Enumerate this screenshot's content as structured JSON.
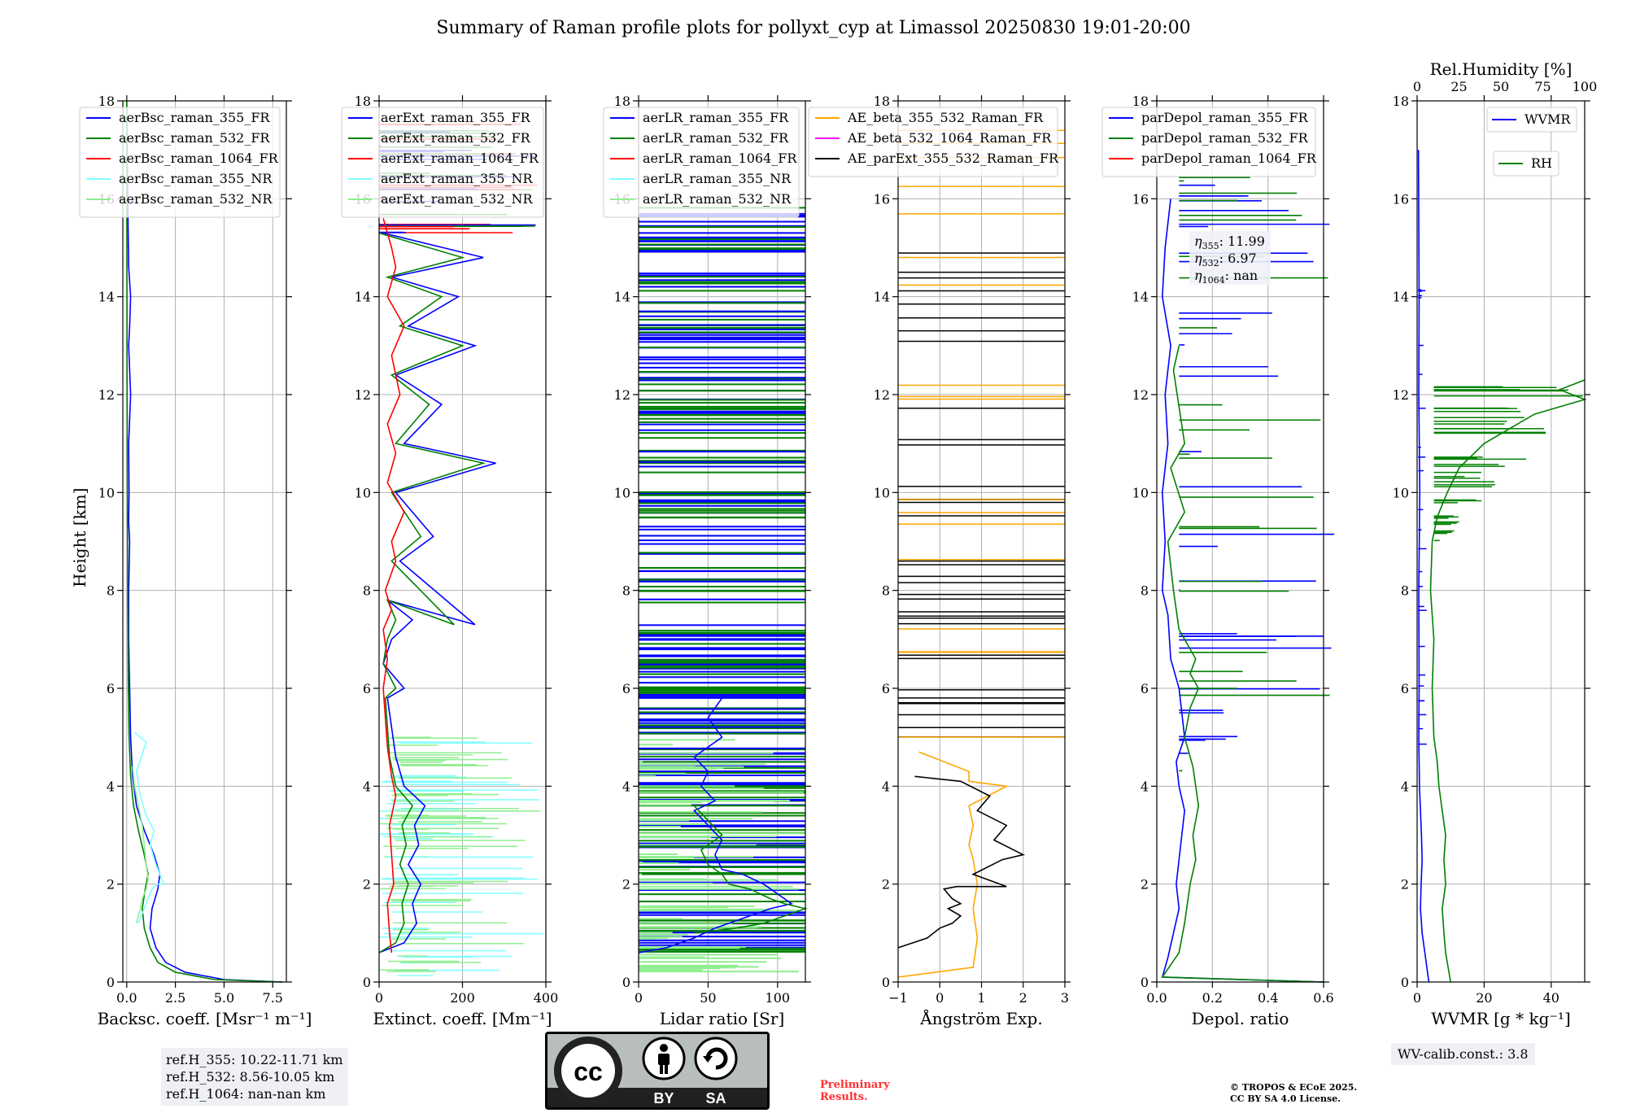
{
  "figure": {
    "title": "Summary of Raman profile plots for pollyxt_cyp at Limassol 20250830 19:01-20:00",
    "ylabel": "Height [km]",
    "ref_lines": [
      "ref.H_355: 10.22-11.71 km",
      "ref.H_532: 8.56-10.05 km",
      "ref.H_1064: nan-nan km"
    ],
    "wv_calib": "WV-calib.const.: 3.8",
    "preliminary": [
      "Preliminary",
      "Results."
    ],
    "copyright": [
      "© TROPOS & ECoE 2025.",
      "CC BY SA 4.0 License."
    ],
    "cc_badge": {
      "by": "BY",
      "sa": "SA",
      "cc": "cc"
    }
  },
  "colors": {
    "blue": "#0000ff",
    "green": "#008000",
    "red": "#ff0000",
    "cyan": "#80ffff",
    "lightgreen": "#90ee90",
    "orange": "#ffa500",
    "magenta": "#ff00ff",
    "black": "#000000"
  },
  "chart_data": [
    {
      "type": "line",
      "id": "bsc",
      "xlabel": "Backsc. coeff. [Msr⁻¹ m⁻¹]",
      "xlim": [
        -0.2,
        8.2
      ],
      "xticks": [
        0.0,
        2.5,
        5.0,
        7.5
      ],
      "xticklabels": [
        "0.0",
        "2.5",
        "5.0",
        "7.5"
      ],
      "ylim": [
        0,
        18
      ],
      "yticks": [
        0,
        2,
        4,
        6,
        8,
        10,
        12,
        14,
        16,
        18
      ],
      "legend": [
        {
          "name": "aerBsc_raman_355_FR",
          "color": "#0000ff"
        },
        {
          "name": "aerBsc_raman_532_FR",
          "color": "#008000"
        },
        {
          "name": "aerBsc_raman_1064_FR",
          "color": "#ff0000"
        },
        {
          "name": "aerBsc_raman_355_NR",
          "color": "#80ffff"
        },
        {
          "name": "aerBsc_raman_532_NR",
          "color": "#90ee90"
        }
      ],
      "series": [
        {
          "name": "aerBsc_raman_355_FR",
          "color": "#0000ff",
          "x": [
            8.0,
            5.0,
            3.0,
            2.0,
            1.5,
            1.2,
            1.3,
            1.6,
            1.7,
            1.4,
            0.9,
            0.5,
            0.3,
            0.2,
            0.15,
            0.1,
            0.1,
            0.15,
            0.1,
            0.12,
            0.1,
            0.2,
            0.1,
            0.15,
            0.2,
            0.1,
            0.05,
            0.0
          ],
          "y": [
            0.0,
            0.05,
            0.2,
            0.4,
            0.7,
            1.1,
            1.5,
            1.9,
            2.2,
            2.6,
            3.1,
            3.6,
            4.2,
            5.0,
            6.0,
            7.0,
            8.0,
            9.0,
            9.4,
            10.0,
            11.0,
            12.0,
            13.0,
            13.4,
            14.0,
            14.6,
            16.0,
            18.0
          ]
        },
        {
          "name": "aerBsc_raman_532_FR",
          "color": "#008000",
          "x": [
            8.0,
            4.5,
            2.5,
            1.6,
            1.2,
            0.9,
            0.8,
            0.95,
            1.1,
            0.9,
            0.6,
            0.35,
            0.2,
            0.12,
            0.08,
            0.05,
            0.02,
            0.0
          ],
          "y": [
            0.0,
            0.05,
            0.2,
            0.4,
            0.7,
            1.1,
            1.5,
            1.9,
            2.2,
            2.6,
            3.1,
            3.6,
            4.2,
            5.0,
            6.0,
            8.0,
            12.0,
            18.0
          ]
        },
        {
          "name": "aerBsc_raman_355_NR",
          "color": "#80ffff",
          "x": [
            0.6,
            0.9,
            1.1,
            1.3,
            1.6,
            1.9,
            1.5,
            1.2,
            1.4,
            1.0,
            0.7,
            0.5,
            1.0,
            0.4
          ],
          "y": [
            1.2,
            1.5,
            1.7,
            1.9,
            2.0,
            2.0,
            2.4,
            2.8,
            3.1,
            3.4,
            3.8,
            4.3,
            4.9,
            5.1
          ]
        },
        {
          "name": "aerBsc_raman_532_NR",
          "color": "#90ee90",
          "x": [
            0.5,
            0.7,
            0.8,
            1.0,
            1.1,
            1.0,
            0.9,
            0.8,
            0.6,
            0.4,
            0.3
          ],
          "y": [
            1.2,
            1.5,
            1.7,
            1.9,
            2.1,
            2.4,
            2.8,
            3.2,
            3.6,
            4.0,
            4.4
          ]
        }
      ]
    },
    {
      "type": "line",
      "id": "ext",
      "xlabel": "Extinct. coeff. [Mm⁻¹]",
      "xlim": [
        0,
        400
      ],
      "xticks": [
        0,
        200,
        400
      ],
      "xticklabels": [
        "0",
        "200",
        "400"
      ],
      "ylim": [
        0,
        18
      ],
      "yticks": [
        0,
        2,
        4,
        6,
        8,
        10,
        12,
        14,
        16,
        18
      ],
      "legend": [
        {
          "name": "aerExt_raman_355_FR",
          "color": "#0000ff"
        },
        {
          "name": "aerExt_raman_532_FR",
          "color": "#008000"
        },
        {
          "name": "aerExt_raman_1064_FR",
          "color": "#ff0000"
        },
        {
          "name": "aerExt_raman_355_NR",
          "color": "#80ffff"
        },
        {
          "name": "aerExt_raman_532_NR",
          "color": "#90ee90"
        }
      ],
      "series": [
        {
          "name": "aerExt_raman_355_FR",
          "color": "#0000ff",
          "x": [
            0,
            60,
            90,
            80,
            100,
            70,
            95,
            85,
            110,
            60,
            40,
            30,
            20,
            60,
            10,
            30,
            80,
            20,
            230,
            50,
            130,
            40,
            280,
            60,
            150,
            40,
            230,
            70,
            190,
            30,
            250,
            10
          ],
          "y": [
            0.6,
            0.8,
            1.2,
            1.6,
            2.0,
            2.4,
            2.8,
            3.2,
            3.6,
            4.0,
            4.6,
            5.2,
            5.8,
            6.0,
            6.5,
            7.0,
            7.4,
            7.8,
            7.3,
            8.6,
            9.1,
            10.0,
            10.6,
            11.0,
            11.8,
            12.4,
            13.0,
            13.4,
            14.0,
            14.4,
            14.8,
            15.3
          ]
        },
        {
          "name": "aerExt_raman_532_FR",
          "color": "#008000",
          "x": [
            0,
            40,
            60,
            55,
            70,
            50,
            65,
            55,
            80,
            40,
            25,
            20,
            15,
            40,
            10,
            20,
            40,
            20,
            180,
            30,
            100,
            30,
            250,
            40,
            120,
            30,
            200,
            50,
            150,
            20,
            200,
            0
          ],
          "y": [
            0.6,
            0.8,
            1.2,
            1.6,
            2.0,
            2.4,
            2.8,
            3.2,
            3.6,
            4.0,
            4.6,
            5.2,
            5.8,
            6.0,
            6.5,
            7.0,
            7.4,
            7.8,
            7.3,
            8.6,
            9.1,
            10.0,
            10.6,
            11.0,
            11.8,
            12.4,
            13.0,
            13.4,
            14.0,
            14.4,
            14.8,
            15.3
          ]
        },
        {
          "name": "aerExt_raman_1064_FR",
          "color": "#ff0000",
          "x": [
            30,
            25,
            20,
            35,
            30,
            25,
            40,
            30,
            20,
            15,
            10,
            20,
            10,
            30,
            15,
            40,
            30,
            60,
            20,
            40,
            20,
            50,
            30,
            60,
            20,
            40,
            30,
            10
          ],
          "y": [
            0.6,
            1.0,
            1.6,
            2.0,
            2.6,
            3.2,
            3.8,
            4.2,
            4.8,
            5.4,
            6.0,
            6.6,
            7.2,
            7.6,
            8.0,
            8.6,
            9.0,
            9.6,
            10.2,
            10.8,
            11.4,
            12.0,
            12.8,
            13.4,
            14.0,
            14.6,
            15.0,
            15.6
          ]
        }
      ]
    },
    {
      "type": "line",
      "id": "lr",
      "xlabel": "Lidar ratio [Sr]",
      "xlim": [
        0,
        120
      ],
      "xticks": [
        0,
        50,
        100
      ],
      "xticklabels": [
        "0",
        "50",
        "100"
      ],
      "ylim": [
        0,
        18
      ],
      "yticks": [
        0,
        2,
        4,
        6,
        8,
        10,
        12,
        14,
        16,
        18
      ],
      "legend": [
        {
          "name": "aerLR_raman_355_FR",
          "color": "#0000ff"
        },
        {
          "name": "aerLR_raman_532_FR",
          "color": "#008000"
        },
        {
          "name": "aerLR_raman_1064_FR",
          "color": "#ff0000"
        },
        {
          "name": "aerLR_raman_355_NR",
          "color": "#80ffff"
        },
        {
          "name": "aerLR_raman_532_NR",
          "color": "#90ee90"
        }
      ],
      "series": [
        {
          "name": "aerLR_raman_355_FR",
          "color": "#0000ff",
          "x": [
            0,
            20,
            40,
            55,
            65,
            75,
            85,
            95,
            110,
            100,
            90,
            75,
            60,
            55,
            60,
            50,
            40,
            55,
            45,
            50,
            40,
            60,
            50,
            60
          ],
          "y": [
            0.6,
            0.7,
            0.9,
            1.1,
            1.2,
            1.3,
            1.4,
            1.5,
            1.6,
            1.8,
            2.0,
            2.2,
            2.3,
            2.6,
            2.9,
            3.2,
            3.5,
            3.7,
            4.0,
            4.3,
            4.6,
            5.0,
            5.4,
            5.8
          ]
        },
        {
          "name": "aerLR_raman_532_FR",
          "color": "#008000",
          "x": [
            40,
            70,
            90,
            100,
            110,
            120,
            105,
            95,
            80,
            65,
            60,
            50,
            45,
            60,
            50,
            40
          ],
          "y": [
            1.0,
            1.1,
            1.2,
            1.3,
            1.4,
            1.5,
            1.6,
            1.7,
            1.9,
            2.0,
            2.2,
            2.4,
            2.7,
            3.0,
            3.3,
            3.6
          ]
        }
      ]
    },
    {
      "type": "line",
      "id": "ae",
      "xlabel": "Ångström Exp.",
      "xlim": [
        -1,
        3
      ],
      "xticks": [
        -1,
        0,
        1,
        2,
        3
      ],
      "xticklabels": [
        "−1",
        "0",
        "1",
        "2",
        "3"
      ],
      "ylim": [
        0,
        18
      ],
      "yticks": [
        0,
        2,
        4,
        6,
        8,
        10,
        12,
        14,
        16,
        18
      ],
      "legend": [
        {
          "name": "AE_beta_355_532_Raman_FR",
          "color": "#ffa500"
        },
        {
          "name": "AE_beta_532_1064_Raman_FR",
          "color": "#ff00ff"
        },
        {
          "name": "AE_parExt_355_532_Raman_FR",
          "color": "#000000"
        }
      ],
      "series": [
        {
          "name": "AE_beta_355_532_Raman_FR",
          "color": "#ffa500",
          "x": [
            -1,
            0.8,
            0.9,
            0.8,
            0.9,
            0.8,
            0.7,
            0.8,
            0.7,
            1.6,
            0.7,
            0.7,
            -0.5
          ],
          "y": [
            0.1,
            0.3,
            0.9,
            1.5,
            2.0,
            2.5,
            2.8,
            3.2,
            3.6,
            4.0,
            4.1,
            4.3,
            4.7
          ]
        },
        {
          "name": "AE_parExt_355_532_Raman_FR",
          "color": "#000000",
          "x": [
            -1,
            -0.3,
            0.0,
            0.3,
            0.5,
            0.2,
            0.5,
            0.3,
            0.1,
            0.4,
            1.6,
            0.8,
            1.5,
            2.0,
            1.3,
            1.6,
            0.9,
            1.2,
            0.5,
            -0.6
          ],
          "y": [
            0.7,
            0.9,
            1.1,
            1.2,
            1.35,
            1.5,
            1.6,
            1.7,
            1.9,
            1.95,
            1.95,
            2.2,
            2.5,
            2.6,
            2.9,
            3.2,
            3.5,
            3.8,
            4.1,
            4.2
          ]
        }
      ]
    },
    {
      "type": "line",
      "id": "dep",
      "xlabel": "Depol. ratio",
      "xlim": [
        0,
        0.6
      ],
      "xticks": [
        0.0,
        0.2,
        0.4,
        0.6
      ],
      "xticklabels": [
        "0.0",
        "0.2",
        "0.4",
        "0.6"
      ],
      "ylim": [
        0,
        18
      ],
      "yticks": [
        0,
        2,
        4,
        6,
        8,
        10,
        12,
        14,
        16,
        18
      ],
      "legend": [
        {
          "name": "parDepol_raman_355_FR",
          "color": "#0000ff"
        },
        {
          "name": "parDepol_raman_532_FR",
          "color": "#008000"
        },
        {
          "name": "parDepol_raman_1064_FR",
          "color": "#ff0000"
        }
      ],
      "angstrom_box": [
        {
          "sym": "η",
          "sub": "355",
          "val": ": 11.99"
        },
        {
          "sym": "η",
          "sub": "532",
          "val": ": 6.97"
        },
        {
          "sym": "η",
          "sub": "1064",
          "val": ": nan"
        }
      ],
      "series": [
        {
          "name": "parDepol_raman_355_FR",
          "color": "#0000ff",
          "x": [
            0.6,
            0.02,
            0.04,
            0.06,
            0.08,
            0.07,
            0.08,
            0.09,
            0.1,
            0.08,
            0.07,
            0.1,
            0.08,
            0.05,
            0.04,
            0.02,
            0.03,
            0.02,
            0.04,
            0.03,
            0.05,
            0.02,
            0.03,
            0.05
          ],
          "y": [
            0.0,
            0.1,
            0.5,
            1.0,
            1.5,
            2.0,
            2.5,
            3.0,
            3.5,
            4.0,
            4.5,
            5.0,
            6.0,
            6.6,
            7.5,
            8.0,
            9.0,
            10.0,
            11.0,
            12.0,
            13.0,
            14.0,
            15.0,
            16.0
          ]
        },
        {
          "name": "parDepol_raman_532_FR",
          "color": "#008000",
          "x": [
            0.6,
            0.02,
            0.08,
            0.1,
            0.12,
            0.14,
            0.13,
            0.15,
            0.14,
            0.13,
            0.1,
            0.12,
            0.15,
            0.12,
            0.14,
            0.08,
            0.06,
            0.04,
            0.1,
            0.05,
            0.1,
            0.06,
            0.08
          ],
          "y": [
            0.0,
            0.1,
            0.6,
            1.2,
            2.0,
            2.5,
            3.0,
            3.6,
            4.0,
            4.4,
            5.0,
            5.6,
            6.0,
            6.3,
            6.6,
            7.2,
            8.0,
            9.0,
            9.6,
            10.5,
            11.0,
            12.5,
            13.0
          ]
        }
      ]
    },
    {
      "type": "line",
      "id": "wv",
      "xlabel": "WVMR [g * kg⁻¹]",
      "x2label": "Rel.Humidity [%]",
      "xlim": [
        0,
        50
      ],
      "xticks": [
        0,
        20,
        40
      ],
      "xticklabels": [
        "0",
        "20",
        "40"
      ],
      "x2lim": [
        0,
        100
      ],
      "x2ticks": [
        0,
        25,
        50,
        75,
        100
      ],
      "x2ticklabels": [
        "0",
        "25",
        "50",
        "75",
        "100"
      ],
      "ylim": [
        0,
        18
      ],
      "yticks": [
        0,
        2,
        4,
        6,
        8,
        10,
        12,
        14,
        16,
        18
      ],
      "legend": [
        {
          "name": "WVMR",
          "color": "#0000ff"
        },
        {
          "name": "RH",
          "color": "#008000"
        }
      ],
      "series": [
        {
          "name": "WVMR",
          "color": "#0000ff",
          "x": [
            3.5,
            2.5,
            1.5,
            1.0,
            1.2,
            1.5,
            1.3,
            1.0,
            0.7,
            0.5,
            0.6,
            0.5,
            0.8,
            0.5,
            0.6,
            0.4
          ],
          "y": [
            0.0,
            0.5,
            1.0,
            1.5,
            2.0,
            2.5,
            3.0,
            3.5,
            4.0,
            5.0,
            6.0,
            8.0,
            10.0,
            12.0,
            14.0,
            17.0
          ]
        },
        {
          "name": "RH",
          "color": "#008000",
          "x": [
            20,
            19,
            17,
            16,
            15,
            17,
            16,
            17,
            15,
            13,
            12,
            10,
            9,
            10,
            8,
            9,
            12,
            18,
            25,
            40,
            55,
            70,
            100,
            85,
            100
          ],
          "y": [
            0.0,
            0.2,
            0.6,
            1.0,
            1.5,
            2.0,
            2.5,
            3.0,
            3.5,
            4.0,
            4.5,
            5.0,
            6.0,
            7.0,
            8.0,
            9.0,
            9.5,
            10.0,
            10.5,
            11.0,
            11.3,
            11.6,
            11.9,
            12.1,
            12.3
          ]
        }
      ]
    }
  ]
}
